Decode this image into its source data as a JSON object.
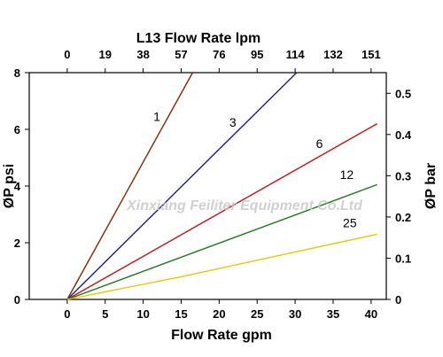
{
  "chart_data": {
    "type": "line",
    "title": "L13 Flow Rate lpm",
    "xlabel": "Flow Rate gpm",
    "ylabel": "ØP psi",
    "y2label": "ØP bar",
    "xlim": [
      -5,
      42
    ],
    "ylim": [
      0,
      8
    ],
    "y2lim": [
      0,
      0.55
    ],
    "x_ticks": [
      0,
      5,
      10,
      15,
      20,
      25,
      30,
      35,
      40
    ],
    "y_ticks": [
      0,
      2,
      4,
      6,
      8
    ],
    "top_ticks": [
      {
        "gpm": 0,
        "label": "0"
      },
      {
        "gpm": 5,
        "label": "19"
      },
      {
        "gpm": 10,
        "label": "38"
      },
      {
        "gpm": 15,
        "label": "57"
      },
      {
        "gpm": 20,
        "label": "76"
      },
      {
        "gpm": 25,
        "label": "95"
      },
      {
        "gpm": 30,
        "label": "114"
      },
      {
        "gpm": 35,
        "label": "132"
      },
      {
        "gpm": 40,
        "label": "151"
      }
    ],
    "right_ticks": [
      0,
      0.1,
      0.2,
      0.3,
      0.4,
      0.5
    ],
    "right_tick_labels": [
      "0",
      "0.1",
      "0.2",
      "0.3",
      "0.4",
      "0.5"
    ],
    "grid": false,
    "series": [
      {
        "name": "1",
        "color": "#8b2500",
        "x": [
          0,
          16.5
        ],
        "y": [
          0,
          8
        ]
      },
      {
        "name": "3",
        "color": "#1a1aa6",
        "x": [
          0,
          30.2
        ],
        "y": [
          0,
          8
        ]
      },
      {
        "name": "6",
        "color": "#cc1111",
        "x": [
          0,
          40.8
        ],
        "y": [
          0,
          6.2
        ]
      },
      {
        "name": "12",
        "color": "#1a7a1a",
        "x": [
          0,
          40.8
        ],
        "y": [
          0,
          4.05
        ]
      },
      {
        "name": "25",
        "color": "#e8c800",
        "x": [
          0,
          15,
          40.8
        ],
        "y": [
          0,
          0.8,
          2.3
        ]
      }
    ],
    "series_label_pos": [
      {
        "x": 11.8,
        "y": 6.3
      },
      {
        "x": 21.8,
        "y": 6.1
      },
      {
        "x": 33.2,
        "y": 5.35
      },
      {
        "x": 36.8,
        "y": 4.25
      },
      {
        "x": 37.2,
        "y": 2.55
      }
    ]
  },
  "watermark": "Xinxiang Feiliter Equipment Co.Ltd"
}
